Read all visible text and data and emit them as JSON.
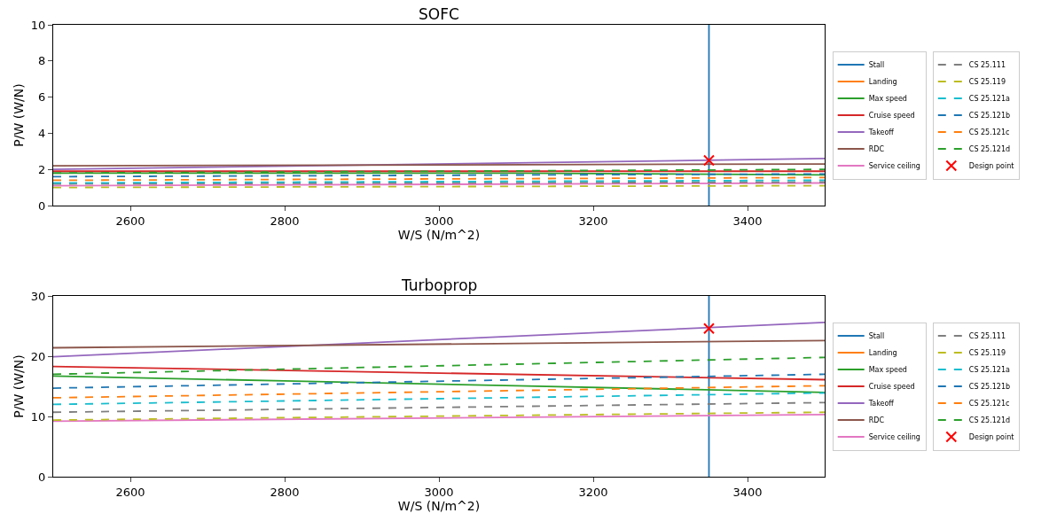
{
  "chart_data": [
    {
      "type": "line",
      "title": "SOFC",
      "xlabel": "W/S (N/m^2)",
      "ylabel": "P/W (W/N)",
      "xlim": [
        2500,
        3500
      ],
      "ylim": [
        0,
        10
      ],
      "xticks": [
        2600,
        2800,
        3000,
        3200,
        3400
      ],
      "yticks": [
        0,
        2,
        4,
        6,
        8,
        10
      ],
      "legend": "right",
      "series": [
        {
          "name": "Stall",
          "color": "#1f77b4",
          "line_style": "solid",
          "x": [
            3350,
            3350
          ],
          "values": [
            0,
            10
          ]
        },
        {
          "name": "Landing",
          "color": "#ff7f0e",
          "line_style": "solid"
        },
        {
          "name": "Max speed",
          "color": "#2ca02c",
          "line_style": "solid",
          "x": [
            2500,
            2800,
            3100,
            3500
          ],
          "values": [
            1.8,
            1.8,
            1.8,
            1.7
          ]
        },
        {
          "name": "Cruise speed",
          "color": "#d62728",
          "line_style": "solid",
          "x": [
            2500,
            3500
          ],
          "values": [
            1.9,
            1.9
          ]
        },
        {
          "name": "Takeoff",
          "color": "#9467bd",
          "line_style": "solid",
          "x": [
            2500,
            3500
          ],
          "values": [
            2.0,
            2.6
          ]
        },
        {
          "name": "RDC",
          "color": "#8c564b",
          "line_style": "solid",
          "x": [
            2500,
            3500
          ],
          "values": [
            2.2,
            2.3
          ]
        },
        {
          "name": "Service ceiling",
          "color": "#e377c2",
          "line_style": "solid",
          "x": [
            2500,
            3500
          ],
          "values": [
            1.1,
            1.25
          ]
        },
        {
          "name": "CS 25.111",
          "color": "#7f7f7f",
          "line_style": "dashed",
          "x": [
            2500,
            3500
          ],
          "values": [
            1.2,
            1.3
          ]
        },
        {
          "name": "CS 25.119",
          "color": "#bcbd22",
          "line_style": "dashed",
          "x": [
            2500,
            3500
          ],
          "values": [
            1.0,
            1.1
          ]
        },
        {
          "name": "CS 25.121a",
          "color": "#17becf",
          "line_style": "dashed",
          "x": [
            2500,
            3500
          ],
          "values": [
            1.25,
            1.4
          ]
        },
        {
          "name": "CS 25.121b",
          "color": "#1f77b4",
          "line_style": "dashed",
          "x": [
            2500,
            3500
          ],
          "values": [
            1.6,
            1.75
          ]
        },
        {
          "name": "CS 25.121c",
          "color": "#ff7f0e",
          "line_style": "dashed",
          "x": [
            2500,
            3500
          ],
          "values": [
            1.4,
            1.55
          ]
        },
        {
          "name": "CS 25.121d",
          "color": "#2ca02c",
          "line_style": "dashed",
          "x": [
            2500,
            3500
          ],
          "values": [
            1.8,
            2.0
          ]
        },
        {
          "name": "Design point",
          "type": "scatter",
          "marker": "cross",
          "color": "#ff0000",
          "x": [
            3350
          ],
          "values": [
            2.5
          ]
        }
      ]
    },
    {
      "type": "line",
      "title": "Turboprop",
      "xlabel": "W/S (N/m^2)",
      "ylabel": "P/W (W/N)",
      "xlim": [
        2500,
        3500
      ],
      "ylim": [
        0,
        30
      ],
      "xticks": [
        2600,
        2800,
        3000,
        3200,
        3400
      ],
      "yticks": [
        0,
        10,
        20,
        30
      ],
      "legend": "right",
      "series": [
        {
          "name": "Stall",
          "color": "#1f77b4",
          "line_style": "solid",
          "x": [
            3350,
            3350
          ],
          "values": [
            0,
            30
          ]
        },
        {
          "name": "Landing",
          "color": "#ff7f0e",
          "line_style": "solid"
        },
        {
          "name": "Max speed",
          "color": "#2ca02c",
          "line_style": "solid",
          "x": [
            2500,
            2800,
            3100,
            3500
          ],
          "values": [
            16.7,
            15.9,
            15.1,
            14.0
          ]
        },
        {
          "name": "Cruise speed",
          "color": "#d62728",
          "line_style": "solid",
          "x": [
            2500,
            3500
          ],
          "values": [
            18.3,
            16.1
          ]
        },
        {
          "name": "Takeoff",
          "color": "#9467bd",
          "line_style": "solid",
          "x": [
            2500,
            3500
          ],
          "values": [
            19.9,
            25.6
          ]
        },
        {
          "name": "RDC",
          "color": "#8c564b",
          "line_style": "solid",
          "x": [
            2500,
            3500
          ],
          "values": [
            21.4,
            22.6
          ]
        },
        {
          "name": "Service ceiling",
          "color": "#e377c2",
          "line_style": "solid",
          "x": [
            2500,
            3500
          ],
          "values": [
            9.2,
            10.3
          ]
        },
        {
          "name": "CS 25.111",
          "color": "#7f7f7f",
          "line_style": "dashed",
          "x": [
            2500,
            3500
          ],
          "values": [
            10.7,
            12.3
          ]
        },
        {
          "name": "CS 25.119",
          "color": "#bcbd22",
          "line_style": "dashed",
          "x": [
            2500,
            3500
          ],
          "values": [
            9.4,
            10.7
          ]
        },
        {
          "name": "CS 25.121a",
          "color": "#17becf",
          "line_style": "dashed",
          "x": [
            2500,
            3500
          ],
          "values": [
            12.0,
            13.9
          ]
        },
        {
          "name": "CS 25.121b",
          "color": "#1f77b4",
          "line_style": "dashed",
          "x": [
            2500,
            3500
          ],
          "values": [
            14.7,
            17.0
          ]
        },
        {
          "name": "CS 25.121c",
          "color": "#ff7f0e",
          "line_style": "dashed",
          "x": [
            2500,
            3500
          ],
          "values": [
            13.1,
            15.1
          ]
        },
        {
          "name": "CS 25.121d",
          "color": "#2ca02c",
          "line_style": "dashed",
          "x": [
            2500,
            3500
          ],
          "values": [
            17.0,
            19.8
          ]
        },
        {
          "name": "Design point",
          "type": "scatter",
          "marker": "cross",
          "color": "#ff0000",
          "x": [
            3350
          ],
          "values": [
            24.6
          ]
        }
      ]
    }
  ]
}
